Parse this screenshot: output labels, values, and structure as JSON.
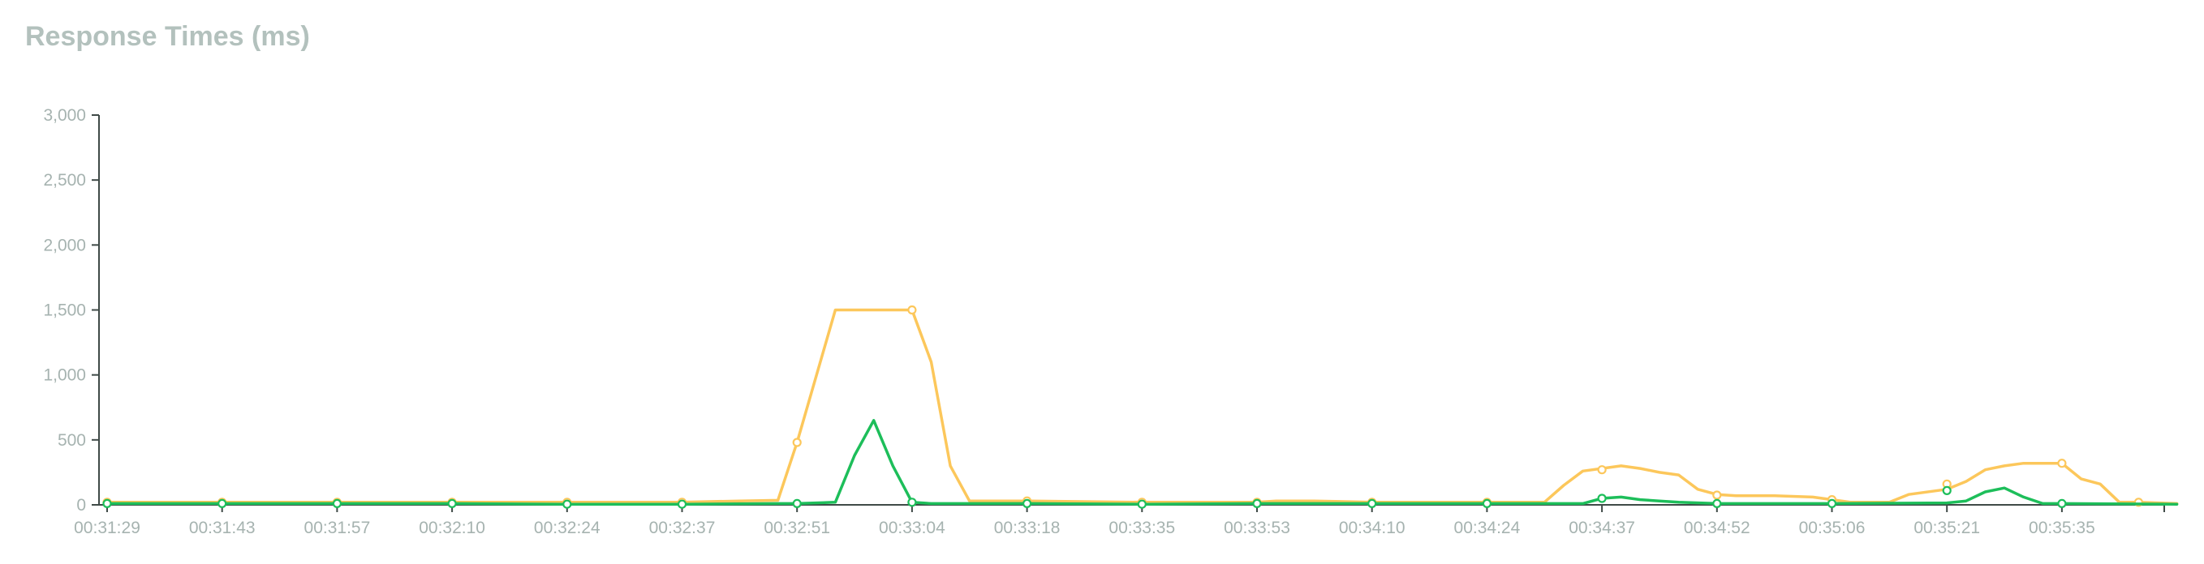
{
  "chart_data": {
    "type": "line",
    "title": "Response Times (ms)",
    "xlabel": "",
    "ylabel": "",
    "ylim": [
      0,
      3000
    ],
    "y_ticks": [
      0,
      500,
      1000,
      1500,
      2000,
      2500,
      3000
    ],
    "y_tick_labels": [
      "0",
      "500",
      "1,000",
      "1,500",
      "2,000",
      "2,500",
      "3,000"
    ],
    "x_tick_labels": [
      "00:31:29",
      "00:31:43",
      "00:31:57",
      "00:32:10",
      "00:32:24",
      "00:32:37",
      "00:32:51",
      "00:33:04",
      "00:33:18",
      "00:33:35",
      "00:33:53",
      "00:34:10",
      "00:34:24",
      "00:34:37",
      "00:34:52",
      "00:35:06",
      "00:35:21",
      "00:35:35"
    ],
    "x_range": [
      0,
      108
    ],
    "grid": false,
    "legend": "none",
    "series": [
      {
        "color": "#fcc75b",
        "points": [
          [
            0,
            20
          ],
          [
            6,
            20
          ],
          [
            12,
            20
          ],
          [
            18,
            20
          ],
          [
            24,
            20
          ],
          [
            30,
            20
          ],
          [
            33,
            30
          ],
          [
            35,
            35
          ],
          [
            36,
            480
          ],
          [
            38,
            1500
          ],
          [
            40,
            1500
          ],
          [
            42,
            1500
          ],
          [
            43,
            1100
          ],
          [
            44,
            300
          ],
          [
            45,
            30
          ],
          [
            48,
            30
          ],
          [
            54,
            20
          ],
          [
            60,
            20
          ],
          [
            61,
            30
          ],
          [
            63,
            30
          ],
          [
            66,
            20
          ],
          [
            72,
            20
          ],
          [
            75,
            20
          ],
          [
            76,
            150
          ],
          [
            77,
            260
          ],
          [
            79,
            300
          ],
          [
            80,
            280
          ],
          [
            81,
            250
          ],
          [
            82,
            230
          ],
          [
            83,
            120
          ],
          [
            84,
            80
          ],
          [
            85,
            70
          ],
          [
            87,
            70
          ],
          [
            89,
            60
          ],
          [
            90,
            40
          ],
          [
            91,
            20
          ],
          [
            93,
            20
          ],
          [
            94,
            80
          ],
          [
            96,
            120
          ],
          [
            97,
            180
          ],
          [
            98,
            270
          ],
          [
            99,
            300
          ],
          [
            100,
            320
          ],
          [
            102,
            320
          ],
          [
            103,
            200
          ],
          [
            104,
            160
          ],
          [
            105,
            20
          ],
          [
            106,
            20
          ],
          [
            108,
            10
          ]
        ],
        "markers": [
          [
            0,
            20
          ],
          [
            6,
            20
          ],
          [
            12,
            20
          ],
          [
            18,
            20
          ],
          [
            24,
            20
          ],
          [
            30,
            20
          ],
          [
            36,
            480
          ],
          [
            42,
            1500
          ],
          [
            48,
            30
          ],
          [
            54,
            20
          ],
          [
            60,
            20
          ],
          [
            66,
            20
          ],
          [
            72,
            20
          ],
          [
            78,
            270
          ],
          [
            84,
            75
          ],
          [
            90,
            40
          ],
          [
            96,
            160
          ],
          [
            102,
            320
          ],
          [
            106,
            20
          ]
        ]
      },
      {
        "color": "#1dbe5a",
        "points": [
          [
            0,
            10
          ],
          [
            18,
            10
          ],
          [
            24,
            5
          ],
          [
            30,
            5
          ],
          [
            35,
            10
          ],
          [
            36,
            10
          ],
          [
            38,
            20
          ],
          [
            39,
            380
          ],
          [
            40,
            650
          ],
          [
            41,
            300
          ],
          [
            42,
            20
          ],
          [
            43,
            10
          ],
          [
            48,
            10
          ],
          [
            54,
            5
          ],
          [
            60,
            10
          ],
          [
            66,
            10
          ],
          [
            72,
            10
          ],
          [
            75,
            10
          ],
          [
            76,
            10
          ],
          [
            77,
            10
          ],
          [
            78,
            50
          ],
          [
            79,
            60
          ],
          [
            80,
            40
          ],
          [
            81,
            30
          ],
          [
            82,
            20
          ],
          [
            84,
            10
          ],
          [
            90,
            10
          ],
          [
            96,
            15
          ],
          [
            97,
            30
          ],
          [
            98,
            100
          ],
          [
            99,
            130
          ],
          [
            100,
            60
          ],
          [
            101,
            10
          ],
          [
            102,
            10
          ],
          [
            108,
            5
          ]
        ],
        "markers": [
          [
            0,
            10
          ],
          [
            6,
            10
          ],
          [
            12,
            10
          ],
          [
            18,
            10
          ],
          [
            24,
            5
          ],
          [
            30,
            5
          ],
          [
            36,
            10
          ],
          [
            42,
            20
          ],
          [
            48,
            10
          ],
          [
            54,
            5
          ],
          [
            60,
            10
          ],
          [
            66,
            10
          ],
          [
            72,
            10
          ],
          [
            78,
            50
          ],
          [
            84,
            10
          ],
          [
            90,
            10
          ],
          [
            96,
            110
          ],
          [
            102,
            10
          ]
        ]
      }
    ]
  }
}
